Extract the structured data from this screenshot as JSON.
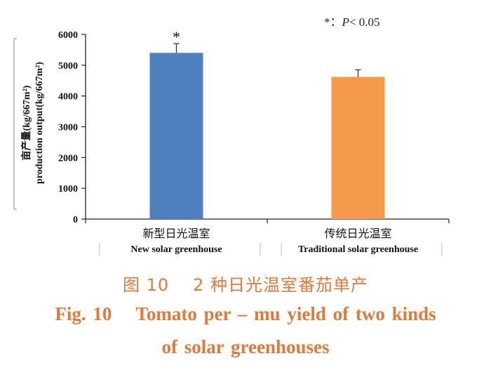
{
  "chart_data": {
    "type": "bar",
    "categories": [
      "新型日光温室",
      "传统日光温室"
    ],
    "categories_en": [
      "New solar greenhouse",
      "Traditional solar greenhouse"
    ],
    "values": [
      5400,
      4620
    ],
    "error": [
      300,
      230
    ],
    "significance_marks": [
      "*",
      ""
    ],
    "colors": [
      "#4f7fbf",
      "#f59a4a"
    ],
    "ylabel_cn": "亩产量(kg/667m²)",
    "ylabel_en": "production output(kg/667m²)",
    "ylim": [
      0,
      6000
    ],
    "yticks": [
      0,
      1000,
      2000,
      3000,
      4000,
      5000,
      6000
    ],
    "grid": false,
    "note_prefix": "*：",
    "note_p": "P",
    "note_rest": "< 0.05"
  },
  "caption": {
    "cn_fig": "图 10",
    "cn_title": "2 种日光温室番茄单产",
    "en_fig": "Fig. 10",
    "en_title": "Tomato per – mu yield of two kinds",
    "en_title_2": "of solar greenhouses"
  }
}
